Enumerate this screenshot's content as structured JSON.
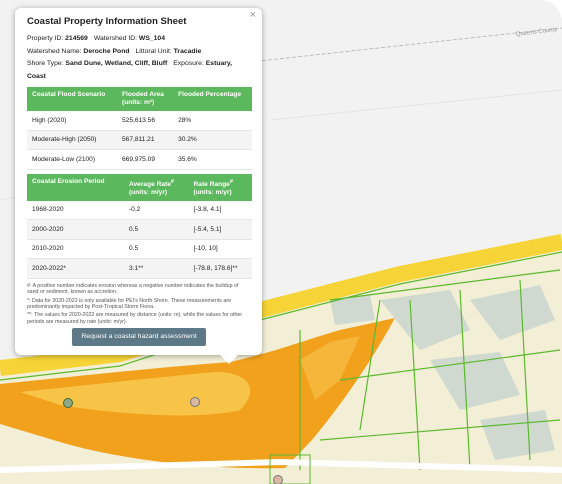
{
  "popup": {
    "title": "Coastal Property Information Sheet",
    "close": "×",
    "fields": [
      [
        {
          "label": "Property ID:",
          "value": "214569"
        },
        {
          "label": "Watershed ID:",
          "value": "WS_104"
        }
      ],
      [
        {
          "label": "Watershed Name:",
          "value": "Deroche Pond"
        },
        {
          "label": "Littoral Unit:",
          "value": "Tracadie"
        }
      ],
      [
        {
          "label": "Shore Type:",
          "value": "Sand Dune, Wetland, Cliff, Bluff"
        },
        {
          "label": "Exposure:",
          "value": "Estuary, Coast"
        }
      ]
    ],
    "flood_table": {
      "headers": [
        {
          "text": "Coastal Flood Scenario"
        },
        {
          "text": "Flooded Area",
          "units": "(units: m²)"
        },
        {
          "text": "Flooded Percentage"
        }
      ],
      "rows": [
        [
          "High (2020)",
          "525,613.56",
          "28%"
        ],
        [
          "Moderate-High (2050)",
          "567,811.21",
          "30.2%"
        ],
        [
          "Moderate-Low (2100)",
          "669,975.09",
          "35.6%"
        ]
      ]
    },
    "erosion_table": {
      "headers": [
        {
          "text": "Coastal Erosion Period"
        },
        {
          "text": "Average Rate",
          "sup": "#",
          "units": "(units: m/yr)"
        },
        {
          "text": "Rate Range",
          "sup": "#",
          "units": "(units: m/yr)"
        }
      ],
      "rows": [
        [
          "1968-2020",
          "-0.2",
          "[-3.8, 4.1]"
        ],
        [
          "2000-2020",
          "0.5",
          "[-5.4, 5.1]"
        ],
        [
          "2010-2020",
          "0.5",
          "[-10, 10]"
        ],
        [
          "2020-2022*",
          "3.1**",
          "[-78.8, 178.6]**"
        ]
      ]
    },
    "notes": [
      "#: A positive number indicates erosion whereas a negative number indicates the buildup of sand or sediment, known as accretion.",
      "*: Data for 2020-2022 is only available for PEI's North Shore. These measurements are predominantly impacted by Post-Tropical Storm Fiona.",
      "**: The values for 2020-2022 are measured by distance (units: m), while the values for other periods are measured by rate (units: m/yr)."
    ],
    "button": "Request a coastal hazard assessment"
  },
  "map": {
    "labels": [
      "Queens County"
    ]
  }
}
